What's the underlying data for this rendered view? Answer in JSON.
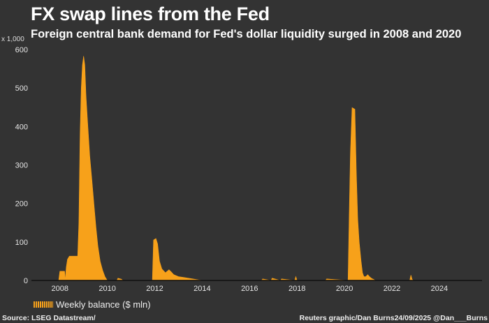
{
  "chart_data": {
    "type": "area",
    "title": "FX swap lines from the Fed",
    "subtitle": "Foreign central bank demand for Fed's dollar liquidity surged in 2008 and 2020",
    "ylabel": "x 1,000",
    "ylim": [
      0,
      600
    ],
    "xlim": [
      2006.8,
      2025.8
    ],
    "yticks": [
      "0",
      "100",
      "200",
      "300",
      "400",
      "500",
      "600"
    ],
    "yticks_values": [
      0,
      100,
      200,
      300,
      400,
      500,
      600
    ],
    "xticks": [
      "2008",
      "2010",
      "2012",
      "2014",
      "2016",
      "2018",
      "2020",
      "2022",
      "2024"
    ],
    "xticks_values": [
      2008,
      2010,
      2012,
      2014,
      2016,
      2018,
      2020,
      2022,
      2024
    ],
    "grid": false,
    "legend_position": "bottom-left",
    "series": [
      {
        "name": "Weekly balance ($ mln)",
        "color": "#f7a11a",
        "x": [
          2007.95,
          2008.0,
          2008.2,
          2008.22,
          2008.27,
          2008.32,
          2008.4,
          2008.75,
          2008.8,
          2008.85,
          2008.9,
          2008.95,
          2009.0,
          2009.05,
          2009.1,
          2009.18,
          2009.26,
          2009.35,
          2009.44,
          2009.52,
          2009.6,
          2009.7,
          2009.8,
          2009.9,
          2010.0,
          2010.05,
          2010.4,
          2010.45,
          2010.6,
          2010.65,
          2011.9,
          2011.95,
          2012.05,
          2012.12,
          2012.2,
          2012.3,
          2012.45,
          2012.6,
          2012.7,
          2012.8,
          2013.0,
          2013.2,
          2013.5,
          2013.8,
          2014.0,
          2016.5,
          2016.55,
          2016.9,
          2016.95,
          2017.3,
          2017.35,
          2017.9,
          2017.95,
          2018.0,
          2018.05,
          2019.2,
          2019.25,
          2020.15,
          2020.2,
          2020.25,
          2020.32,
          2020.44,
          2020.5,
          2020.56,
          2020.62,
          2020.7,
          2020.76,
          2020.82,
          2020.9,
          2020.98,
          2021.05,
          2021.15,
          2021.25,
          2021.3,
          2022.75,
          2022.8,
          2022.85,
          2022.9
        ],
        "values": [
          0,
          24,
          24,
          0,
          35,
          55,
          63,
          63,
          150,
          377,
          500,
          560,
          583,
          560,
          480,
          400,
          323,
          260,
          196,
          140,
          90,
          50,
          27,
          10,
          0,
          0,
          0,
          6,
          3,
          0,
          0,
          105,
          109,
          95,
          50,
          30,
          20,
          28,
          22,
          15,
          10,
          8,
          5,
          2,
          0,
          0,
          4,
          0,
          6,
          0,
          4,
          0,
          10,
          0,
          0,
          0,
          4,
          0,
          170,
          330,
          449,
          445,
          280,
          160,
          100,
          50,
          20,
          10,
          10,
          15,
          10,
          5,
          2,
          0,
          0,
          14,
          3,
          0
        ]
      }
    ]
  },
  "footer": {
    "source": "Source: LSEG Datastream/",
    "credit": "Reuters graphic/Dan Burns24/09/2025 @Dan___Burns"
  }
}
